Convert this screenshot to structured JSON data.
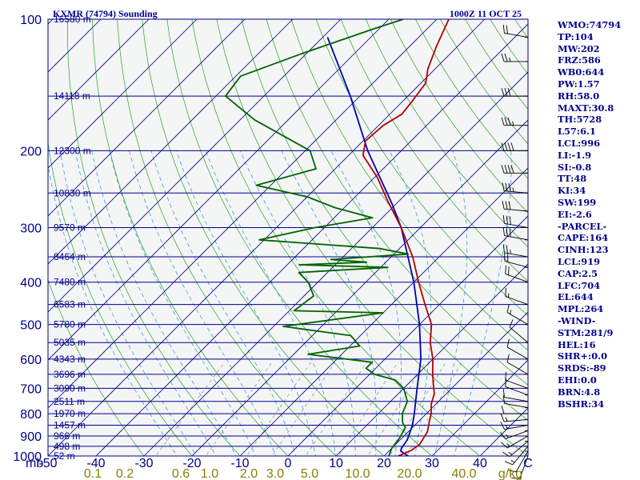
{
  "header": {
    "station": "KXMR (74794) Sounding",
    "valid_time": "1000Z 11 OCT 25"
  },
  "colors": {
    "background": "#ffffff",
    "plot_background": "#f4f5f5",
    "isobar": "#00008b",
    "isotherm": "#00008b",
    "dry_adiabat": "#28a028",
    "moist_adiabat": "#3c9cd0",
    "mixing_ratio": "#888888",
    "temperature": "#b40000",
    "dewpoint": "#006400",
    "parcel": "#0000b4",
    "wind_barbs": "#000000",
    "index_text": "#00008b",
    "mixing_ratio_labels": "#8b7d00"
  },
  "chart_data": {
    "type": "skew-t log-p sounding",
    "pressure_axis": {
      "unit_label": "mb",
      "levels": [
        100,
        200,
        300,
        400,
        500,
        600,
        700,
        800,
        900,
        1000
      ],
      "range_mb": [
        100,
        1000
      ],
      "scale": "log"
    },
    "temperature_axis": {
      "ticks": [
        -50,
        -40,
        -30,
        -20,
        -10,
        0,
        10,
        20,
        30,
        40
      ],
      "end_label": "C",
      "range_c": [
        -50,
        50
      ],
      "skew": "45 deg"
    },
    "mixing_ratio_axis": {
      "ticks": [
        "0.1",
        "0.2",
        "0.6",
        "1.0",
        "2.0",
        "3.0",
        "5.0",
        "10.0",
        "20.0",
        "40.0"
      ],
      "unit_label": "g/kg"
    },
    "height_labels": [
      {
        "p": 100,
        "text": "16580 m"
      },
      {
        "p": 150,
        "text": "14118 m"
      },
      {
        "p": 200,
        "text": "12300 m"
      },
      {
        "p": 250,
        "text": "10830 m"
      },
      {
        "p": 300,
        "text": "9570 m"
      },
      {
        "p": 350,
        "text": "8464 m"
      },
      {
        "p": 400,
        "text": "7480 m"
      },
      {
        "p": 450,
        "text": "6583 m"
      },
      {
        "p": 500,
        "text": "5780 m"
      },
      {
        "p": 550,
        "text": "5035 m"
      },
      {
        "p": 600,
        "text": "4343 m"
      },
      {
        "p": 650,
        "text": "3696 m"
      },
      {
        "p": 700,
        "text": "3090 m"
      },
      {
        "p": 750,
        "text": "2511 m"
      },
      {
        "p": 800,
        "text": "1970 m"
      },
      {
        "p": 850,
        "text": "1457 m"
      },
      {
        "p": 900,
        "text": "966 m"
      },
      {
        "p": 950,
        "text": "498 m"
      },
      {
        "p": 1000,
        "text": "52 m"
      }
    ],
    "temperature_profile": [
      {
        "p": 1005,
        "t": 23.5
      },
      {
        "p": 1000,
        "t": 23.0
      },
      {
        "p": 970,
        "t": 24.5
      },
      {
        "p": 940,
        "t": 25.0
      },
      {
        "p": 880,
        "t": 24.0
      },
      {
        "p": 840,
        "t": 22.5
      },
      {
        "p": 800,
        "t": 21.0
      },
      {
        "p": 760,
        "t": 19.0
      },
      {
        "p": 720,
        "t": 17.5
      },
      {
        "p": 680,
        "t": 15.0
      },
      {
        "p": 640,
        "t": 12.5
      },
      {
        "p": 600,
        "t": 10.0
      },
      {
        "p": 550,
        "t": 6.0
      },
      {
        "p": 500,
        "t": 2.5
      },
      {
        "p": 450,
        "t": -3.0
      },
      {
        "p": 400,
        "t": -9.0
      },
      {
        "p": 350,
        "t": -15.5
      },
      {
        "p": 300,
        "t": -24.0
      },
      {
        "p": 260,
        "t": -32.5
      },
      {
        "p": 230,
        "t": -39.5
      },
      {
        "p": 205,
        "t": -47.0
      },
      {
        "p": 190,
        "t": -49.5
      },
      {
        "p": 175,
        "t": -49.0
      },
      {
        "p": 165,
        "t": -47.5
      },
      {
        "p": 155,
        "t": -48.0
      },
      {
        "p": 140,
        "t": -49.0
      },
      {
        "p": 130,
        "t": -51.5
      },
      {
        "p": 115,
        "t": -54.5
      },
      {
        "p": 100,
        "t": -57.5
      }
    ],
    "dewpoint_profile": [
      {
        "p": 1005,
        "t": 21.5
      },
      {
        "p": 1000,
        "t": 21.0
      },
      {
        "p": 960,
        "t": 20.0
      },
      {
        "p": 910,
        "t": 19.5
      },
      {
        "p": 860,
        "t": 18.5
      },
      {
        "p": 840,
        "t": 17.0
      },
      {
        "p": 800,
        "t": 15.0
      },
      {
        "p": 750,
        "t": 13.5
      },
      {
        "p": 700,
        "t": 10.0
      },
      {
        "p": 670,
        "t": 6.5
      },
      {
        "p": 650,
        "t": 1.0
      },
      {
        "p": 630,
        "t": -2.0
      },
      {
        "p": 610,
        "t": -2.0
      },
      {
        "p": 585,
        "t": -17.0
      },
      {
        "p": 560,
        "t": -8.0
      },
      {
        "p": 530,
        "t": -12.0
      },
      {
        "p": 505,
        "t": -28.0
      },
      {
        "p": 470,
        "t": -10.0
      },
      {
        "p": 465,
        "t": -29.0
      },
      {
        "p": 430,
        "t": -28.0
      },
      {
        "p": 400,
        "t": -32.0
      },
      {
        "p": 380,
        "t": -36.0
      },
      {
        "p": 370,
        "t": -18.5
      },
      {
        "p": 365,
        "t": -37.5
      },
      {
        "p": 360,
        "t": -24.0
      },
      {
        "p": 355,
        "t": -32.0
      },
      {
        "p": 345,
        "t": -17.0
      },
      {
        "p": 335,
        "t": -24.0
      },
      {
        "p": 320,
        "t": -51.0
      },
      {
        "p": 300,
        "t": -42.0
      },
      {
        "p": 285,
        "t": -32.0
      },
      {
        "p": 270,
        "t": -42.0
      },
      {
        "p": 255,
        "t": -50.0
      },
      {
        "p": 240,
        "t": -63.0
      },
      {
        "p": 220,
        "t": -54.0
      },
      {
        "p": 200,
        "t": -59.0
      },
      {
        "p": 170,
        "t": -77.0
      },
      {
        "p": 150,
        "t": -88.0
      },
      {
        "p": 135,
        "t": -89.0
      },
      {
        "p": 120,
        "t": -81.0
      },
      {
        "p": 105,
        "t": -71.0
      },
      {
        "p": 100,
        "t": -67.0
      }
    ],
    "parcel_profile": [
      {
        "p": 1010,
        "t": 26.0
      },
      {
        "p": 975,
        "t": 22.5
      },
      {
        "p": 960,
        "t": 22.0
      },
      {
        "p": 919,
        "t": 21.5
      },
      {
        "p": 850,
        "t": 19.5
      },
      {
        "p": 800,
        "t": 17.5
      },
      {
        "p": 704,
        "t": 13.0
      },
      {
        "p": 600,
        "t": 7.5
      },
      {
        "p": 500,
        "t": 0.0
      },
      {
        "p": 400,
        "t": -10.0
      },
      {
        "p": 300,
        "t": -24.0
      },
      {
        "p": 264,
        "t": -31.0
      },
      {
        "p": 200,
        "t": -47.0
      },
      {
        "p": 150,
        "t": -62.0
      },
      {
        "p": 110,
        "t": -79.0
      }
    ],
    "wind_barbs": [
      {
        "p": 1000,
        "dir": 200,
        "spd": 10
      },
      {
        "p": 975,
        "dir": 210,
        "spd": 10
      },
      {
        "p": 950,
        "dir": 220,
        "spd": 15
      },
      {
        "p": 925,
        "dir": 230,
        "spd": 15
      },
      {
        "p": 900,
        "dir": 240,
        "spd": 15
      },
      {
        "p": 875,
        "dir": 250,
        "spd": 15
      },
      {
        "p": 850,
        "dir": 260,
        "spd": 15
      },
      {
        "p": 825,
        "dir": 265,
        "spd": 15
      },
      {
        "p": 800,
        "dir": 270,
        "spd": 10
      },
      {
        "p": 775,
        "dir": 280,
        "spd": 10
      },
      {
        "p": 750,
        "dir": 280,
        "spd": 10
      },
      {
        "p": 725,
        "dir": 290,
        "spd": 10
      },
      {
        "p": 700,
        "dir": 290,
        "spd": 10
      },
      {
        "p": 650,
        "dir": 300,
        "spd": 10
      },
      {
        "p": 600,
        "dir": 300,
        "spd": 10
      },
      {
        "p": 550,
        "dir": 310,
        "spd": 10
      },
      {
        "p": 500,
        "dir": 300,
        "spd": 15
      },
      {
        "p": 450,
        "dir": 290,
        "spd": 15
      },
      {
        "p": 400,
        "dir": 290,
        "spd": 20
      },
      {
        "p": 370,
        "dir": 285,
        "spd": 20
      },
      {
        "p": 350,
        "dir": 280,
        "spd": 25
      },
      {
        "p": 320,
        "dir": 280,
        "spd": 30
      },
      {
        "p": 300,
        "dir": 280,
        "spd": 30
      },
      {
        "p": 275,
        "dir": 275,
        "spd": 30
      },
      {
        "p": 250,
        "dir": 275,
        "spd": 35
      },
      {
        "p": 225,
        "dir": 270,
        "spd": 40
      },
      {
        "p": 200,
        "dir": 270,
        "spd": 40
      },
      {
        "p": 175,
        "dir": 270,
        "spd": 35
      },
      {
        "p": 150,
        "dir": 270,
        "spd": 30
      },
      {
        "p": 125,
        "dir": 270,
        "spd": 25
      },
      {
        "p": 110,
        "dir": 280,
        "spd": 20
      }
    ],
    "grid": true,
    "legend": "none"
  },
  "indices": [
    "WMO:74794",
    "TP:104",
    "MW:202",
    "FRZ:586",
    "WB0:644",
    "PW:1.57",
    "RH:58.0",
    "MAXT:30.8",
    "TH:5728",
    "L57:6.1",
    "LCL:996",
    "LI:-1.9",
    "SI:-0.8",
    "TT:48",
    "KI:34",
    "SW:199",
    "EI:-2.6",
    "-PARCEL-",
    "CAPE:164",
    "CINH:123",
    "LCL:919",
    "CAP:2.5",
    "LFC:704",
    "EL:644",
    "MPL:264",
    "-WIND-",
    "STM:281/9",
    "HEL:16",
    "SHR+:0.0",
    "SRDS:-89",
    "EHI:0.0",
    "BRN:4.8",
    "BSHR:34"
  ]
}
